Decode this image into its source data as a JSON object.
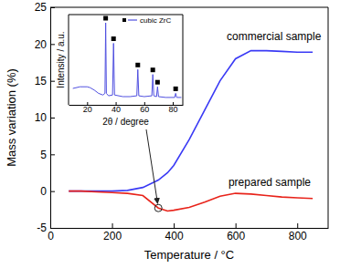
{
  "chart_data": [
    {
      "type": "line",
      "x_label": "Temperature / °C",
      "y_label": "Mass variation (%)",
      "x": [
        60,
        100,
        150,
        200,
        250,
        300,
        350,
        380,
        400,
        450,
        500,
        550,
        600,
        650,
        700,
        750,
        800,
        850
      ],
      "series": [
        {
          "name": "commercial sample",
          "color": "#3a3af5",
          "values": [
            0,
            0,
            0,
            0,
            0.1,
            0.5,
            1.5,
            2.5,
            3.5,
            7,
            11,
            15,
            18,
            19.1,
            19.1,
            19,
            18.9,
            18.9
          ]
        },
        {
          "name": "prepared sample",
          "color": "#e8231a",
          "values": [
            0,
            0,
            -0.1,
            -0.2,
            -0.3,
            -0.6,
            -2.3,
            -2.7,
            -2.6,
            -2.2,
            -1.5,
            -0.7,
            -0.3,
            -0.4,
            -0.6,
            -0.8,
            -0.9,
            -1.0
          ]
        }
      ],
      "highlight": {
        "x": 350,
        "y": -2.3
      },
      "xlim": [
        0,
        900
      ],
      "ylim": [
        -5,
        25
      ],
      "xticks": [
        0,
        200,
        400,
        600,
        800
      ],
      "yticks": [
        -5,
        0,
        5,
        10,
        15,
        20,
        25
      ]
    },
    {
      "type": "line",
      "x_label": "2θ / degree",
      "y_label": "Intensity / a.u.",
      "x": [
        10,
        15,
        20,
        22,
        25,
        28,
        31,
        32.5,
        33,
        33.5,
        35,
        37.8,
        38.5,
        39.2,
        45,
        50,
        54.8,
        55.5,
        56.2,
        60,
        65.3,
        66,
        66.7,
        68.6,
        69.3,
        70,
        75,
        81.3,
        82,
        82.7,
        86
      ],
      "series": [
        {
          "name": "cubic ZrC",
          "color": "#5050e0",
          "values": [
            20,
            22,
            22,
            21,
            18,
            14,
            12,
            14,
            100,
            14,
            11,
            12,
            75,
            12,
            10,
            10,
            11,
            43,
            11,
            10,
            11,
            37,
            11,
            10,
            22,
            10,
            9,
            9,
            14,
            9,
            9
          ]
        }
      ],
      "peaks": {
        "x": [
          33,
          38.5,
          55.5,
          66,
          69.3,
          82
        ],
        "values": [
          100,
          75,
          43,
          37,
          22,
          14
        ],
        "marker": "square",
        "color": "#000000"
      },
      "xlim": [
        7,
        87
      ],
      "ylim": [
        0,
        110
      ],
      "xticks": [
        20,
        40,
        60,
        80
      ],
      "tick_labels": "x",
      "legend": "upper right"
    }
  ]
}
